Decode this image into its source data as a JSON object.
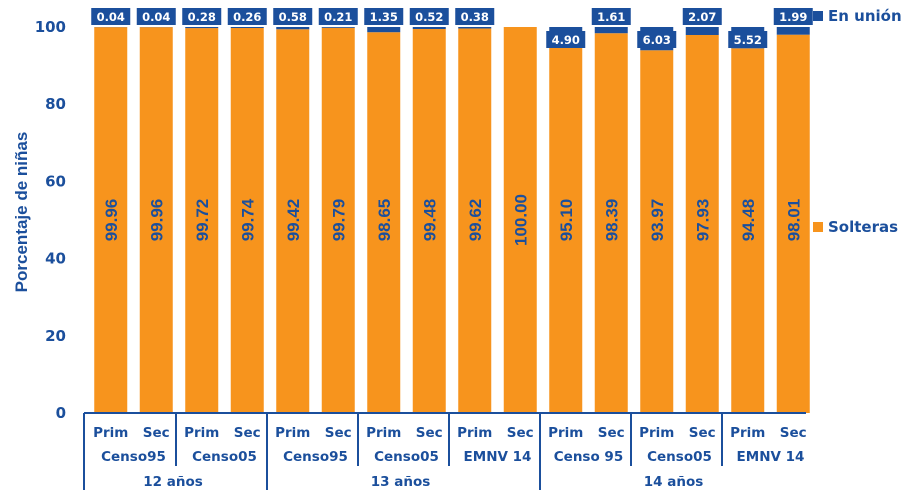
{
  "chart_data": {
    "type": "bar",
    "stacked": true,
    "ylabel": "Porcentaje de niñas",
    "ylim": [
      0,
      100
    ],
    "yticks": [
      0,
      20,
      40,
      60,
      80,
      100
    ],
    "categories": [
      "Prim",
      "Sec",
      "Prim",
      "Sec",
      "Prim",
      "Sec",
      "Prim",
      "Sec",
      "Prim",
      "Sec",
      "Prim",
      "Sec",
      "Prim",
      "Sec",
      "Prim",
      "Sec"
    ],
    "category_groups": [
      {
        "label": "Censo95",
        "span": 2
      },
      {
        "label": "Censo05",
        "span": 2
      },
      {
        "label": "Censo95",
        "span": 2
      },
      {
        "label": "Censo05",
        "span": 2
      },
      {
        "label": "EMNV 14",
        "span": 2
      },
      {
        "label": "Censo 95",
        "span": 2
      },
      {
        "label": "Censo05",
        "span": 2
      },
      {
        "label": "EMNV 14",
        "span": 2
      }
    ],
    "age_groups": [
      {
        "label": "12 años",
        "span": 4
      },
      {
        "label": "13 años",
        "span": 6
      },
      {
        "label": "14 años",
        "span": 6
      }
    ],
    "series": [
      {
        "name": "Solteras",
        "color": "#f7941d",
        "values": [
          99.96,
          99.96,
          99.72,
          99.74,
          99.42,
          99.79,
          98.65,
          99.48,
          99.62,
          100.0,
          95.1,
          98.39,
          93.97,
          97.93,
          94.48,
          98.01
        ],
        "labels": [
          "99.96",
          "99.96",
          "99.72",
          "99.74",
          "99.42",
          "99.79",
          "98.65",
          "99.48",
          "99.62",
          "100.00",
          "95.10",
          "98.39",
          "93.97",
          "97.93",
          "94.48",
          "98.01"
        ]
      },
      {
        "name": "En unión",
        "color": "#1b4f9c",
        "values": [
          0.04,
          0.04,
          0.28,
          0.26,
          0.58,
          0.21,
          1.35,
          0.52,
          0.38,
          0,
          4.9,
          1.61,
          6.03,
          2.07,
          5.52,
          1.99
        ],
        "labels": [
          "0.04",
          "0.04",
          "0.28",
          "0.26",
          "0.58",
          "0.21",
          "1.35",
          "0.52",
          "0.38",
          "",
          "4.90",
          "1.61",
          "6.03",
          "2.07",
          "5.52",
          "1.99"
        ]
      }
    ],
    "legend": {
      "position": "right"
    },
    "grid": false
  }
}
